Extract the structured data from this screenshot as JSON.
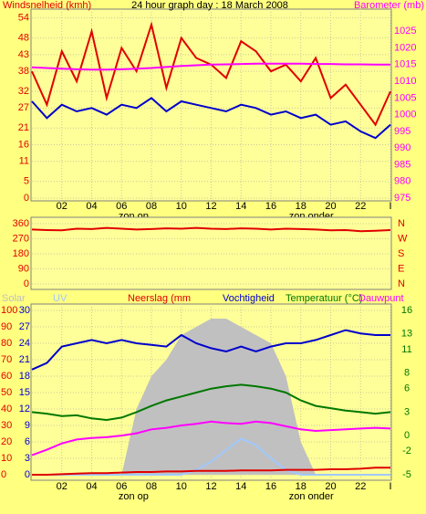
{
  "chart_data": [
    {
      "type": "line",
      "title": "24 hour graph day : 18 March 2008",
      "ylabel": "Windsnelheid (kmh)",
      "y2label": "Barometer (mb)",
      "x": [
        0,
        1,
        2,
        3,
        4,
        5,
        6,
        7,
        8,
        9,
        10,
        11,
        12,
        13,
        14,
        15,
        16,
        17,
        18,
        19,
        20,
        21,
        22,
        23,
        24
      ],
      "xlim": [
        0,
        24
      ],
      "xticks": [
        {
          "value": 2,
          "label": "02"
        },
        {
          "value": 4,
          "label": "04"
        },
        {
          "value": 6,
          "label": "06"
        },
        {
          "value": 8,
          "label": "08"
        },
        10,
        12,
        14,
        16,
        18,
        20,
        22,
        {
          "value": 24,
          "label": "I"
        }
      ],
      "annotations": [
        {
          "text": "zon op",
          "x": 6.8
        },
        {
          "text": "zon onder",
          "x": 18.7
        }
      ],
      "ylim": [
        0,
        55
      ],
      "yticks": [
        0,
        5,
        11,
        16,
        21,
        27,
        32,
        38,
        43,
        48,
        54
      ],
      "y2lim": [
        975,
        1030
      ],
      "y2ticks": [
        975,
        980,
        985,
        990,
        995,
        1000,
        1005,
        1010,
        1015,
        1020,
        1025
      ],
      "series": [
        {
          "color": "#e00000",
          "values": [
            38,
            28,
            44,
            35,
            50,
            30,
            45,
            38,
            52,
            33,
            48,
            42,
            40,
            36,
            47,
            44,
            38,
            40,
            35,
            42,
            30,
            34,
            28,
            22,
            32
          ]
        },
        {
          "color": "#0000cc",
          "values": [
            29,
            24,
            28,
            26,
            27,
            25,
            28,
            27,
            30,
            26,
            29,
            28,
            27,
            26,
            28,
            27,
            25,
            26,
            24,
            25,
            22,
            23,
            20,
            18,
            22
          ]
        },
        {
          "color": "#ff00ff",
          "axis": "y2",
          "values": [
            1014.2,
            1014,
            1013.8,
            1013.6,
            1013.5,
            1013.5,
            1013.6,
            1013.8,
            1014,
            1014.3,
            1014.6,
            1014.8,
            1015,
            1015.1,
            1015.2,
            1015.3,
            1015.3,
            1015.3,
            1015.3,
            1015.2,
            1015.2,
            1015.1,
            1015.1,
            1015,
            1015
          ]
        }
      ]
    },
    {
      "type": "line",
      "x": [
        0,
        1,
        2,
        3,
        4,
        5,
        6,
        7,
        8,
        9,
        10,
        11,
        12,
        13,
        14,
        15,
        16,
        17,
        18,
        19,
        20,
        21,
        22,
        23,
        24
      ],
      "xlim": [
        0,
        24
      ],
      "ylim": [
        0,
        360
      ],
      "yticks": [
        0,
        90,
        180,
        270,
        360
      ],
      "y2lim": [
        0,
        360
      ],
      "y2ticks": [
        {
          "value": 0,
          "label": "N"
        },
        {
          "value": 90,
          "label": "E"
        },
        {
          "value": 180,
          "label": "S"
        },
        {
          "value": 270,
          "label": "W"
        },
        {
          "value": 360,
          "label": "N"
        }
      ],
      "series": [
        {
          "color": "#e00000",
          "values": [
            325,
            322,
            320,
            330,
            328,
            335,
            330,
            325,
            328,
            332,
            330,
            335,
            330,
            328,
            332,
            330,
            325,
            330,
            328,
            325,
            320,
            322,
            315,
            318,
            322
          ]
        }
      ]
    },
    {
      "type": "line",
      "x": [
        0,
        1,
        2,
        3,
        4,
        5,
        6,
        7,
        8,
        9,
        10,
        11,
        12,
        13,
        14,
        15,
        16,
        17,
        18,
        19,
        20,
        21,
        22,
        23,
        24
      ],
      "xlim": [
        0,
        24
      ],
      "xticks": [
        {
          "value": 2,
          "label": "02"
        },
        {
          "value": 4,
          "label": "04"
        },
        {
          "value": 6,
          "label": "06"
        },
        {
          "value": 8,
          "label": "08"
        },
        10,
        12,
        14,
        16,
        18,
        20,
        22,
        {
          "value": 24,
          "label": "I"
        }
      ],
      "annotations": [
        {
          "text": "zon op",
          "x": 6.8
        },
        {
          "text": "zon onder",
          "x": 18.7
        }
      ],
      "ylim": [
        0,
        100
      ],
      "yticks": [
        0,
        10,
        20,
        30,
        40,
        50,
        60,
        70,
        80,
        90,
        100
      ],
      "y3lim": [
        0,
        30
      ],
      "y3ticks": [
        0,
        3,
        6,
        9,
        12,
        15,
        18,
        21,
        24,
        27,
        30
      ],
      "y2lim": [
        -5,
        16
      ],
      "y2ticks": [
        -5,
        -2,
        0,
        3,
        6,
        8,
        11,
        13,
        16
      ],
      "series": [
        {
          "name": "Solar",
          "color": "#c0c0c0",
          "fill": true,
          "values": [
            0,
            0,
            0,
            0,
            0,
            0,
            0,
            40,
            60,
            70,
            85,
            90,
            95,
            95,
            90,
            85,
            80,
            60,
            20,
            0,
            0,
            0,
            0,
            0,
            0
          ]
        },
        {
          "name": "UV",
          "color": "#a0c8ff",
          "values": [
            0,
            0,
            0,
            0,
            0,
            0,
            0,
            0,
            0,
            0,
            0,
            3,
            8,
            15,
            22,
            18,
            10,
            3,
            0,
            0,
            0,
            0,
            0,
            0,
            0
          ]
        },
        {
          "name": "Neerslag (mm",
          "color": "#e00000",
          "axis": "y3",
          "values": [
            0,
            0,
            0.1,
            0.2,
            0.3,
            0.3,
            0.4,
            0.5,
            0.5,
            0.6,
            0.6,
            0.7,
            0.7,
            0.7,
            0.8,
            0.8,
            0.8,
            0.9,
            0.9,
            0.9,
            1,
            1,
            1.1,
            1.3,
            1.3
          ]
        },
        {
          "name": "Vochtigheid",
          "color": "#0000cc",
          "values": [
            64,
            68,
            78,
            80,
            82,
            80,
            82,
            80,
            79,
            78,
            85,
            80,
            77,
            75,
            78,
            75,
            78,
            80,
            80,
            82,
            85,
            88,
            86,
            85,
            85
          ]
        },
        {
          "name": "Temperatuur (°C)",
          "color": "#007700",
          "axis": "y2",
          "values": [
            3,
            2.8,
            2.5,
            2.6,
            2.2,
            2,
            2.3,
            3,
            3.8,
            4.5,
            5,
            5.5,
            6,
            6.3,
            6.5,
            6.3,
            6,
            5.5,
            4.5,
            3.8,
            3.5,
            3.2,
            3,
            2.8,
            3
          ]
        },
        {
          "name": "Dauwpunt",
          "color": "#ff00ff",
          "axis": "y2",
          "values": [
            -2.5,
            -1.8,
            -1,
            -0.5,
            -0.3,
            -0.2,
            0,
            0.3,
            0.8,
            1,
            1.3,
            1.5,
            1.8,
            1.6,
            1.5,
            1.8,
            1.6,
            1.2,
            0.8,
            0.6,
            0.7,
            0.8,
            0.9,
            1,
            0.9
          ]
        }
      ]
    }
  ]
}
